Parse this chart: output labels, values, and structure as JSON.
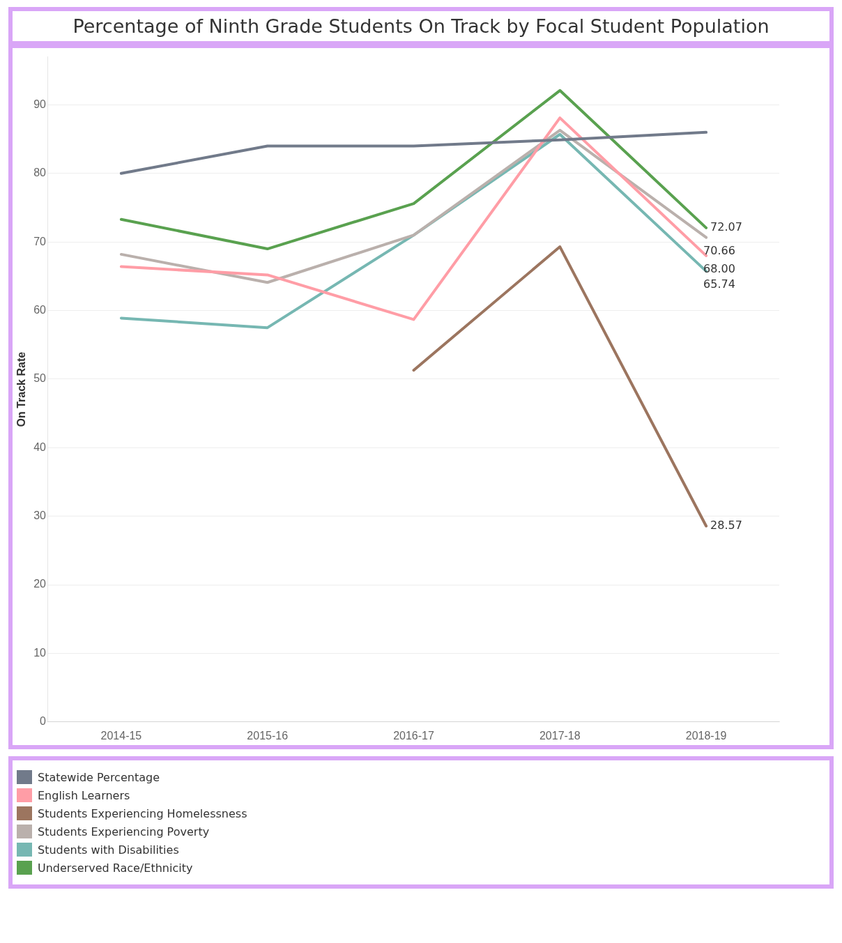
{
  "chart_data": {
    "type": "line",
    "title": "Percentage of Ninth Grade Students On Track by Focal Student Population",
    "ylabel": "On Track Rate",
    "categories": [
      "2014-15",
      "2015-16",
      "2016-17",
      "2017-18",
      "2018-19"
    ],
    "series": [
      {
        "name": "Statewide Percentage",
        "color": "#717a8a",
        "values": [
          80.0,
          84.0,
          84.0,
          84.9,
          86.0
        ]
      },
      {
        "name": "English Learners",
        "color": "#ff9da6",
        "values": [
          66.4,
          65.2,
          58.7,
          88.1,
          68.0
        ],
        "value_labels": [
          null,
          null,
          null,
          null,
          "68.00"
        ]
      },
      {
        "name": "Students Experiencing Homelessness",
        "color": "#9c755f",
        "values": [
          null,
          null,
          51.3,
          69.3,
          28.57
        ],
        "value_labels": [
          null,
          null,
          null,
          null,
          "28.57"
        ]
      },
      {
        "name": "Students Experiencing Poverty",
        "color": "#bab0ac",
        "values": [
          68.2,
          64.1,
          71.0,
          86.3,
          70.66
        ],
        "value_labels": [
          null,
          null,
          null,
          null,
          "70.66"
        ]
      },
      {
        "name": "Students with Disabilities",
        "color": "#76b7b2",
        "values": [
          58.9,
          57.5,
          71.0,
          85.7,
          65.74
        ],
        "value_labels": [
          null,
          null,
          null,
          null,
          "65.74"
        ]
      },
      {
        "name": "Underserved Race/Ethnicity",
        "color": "#59a14f",
        "values": [
          73.3,
          69.0,
          75.6,
          92.1,
          72.07
        ],
        "value_labels": [
          null,
          null,
          null,
          null,
          "72.07"
        ]
      }
    ],
    "ylim": [
      0,
      97
    ],
    "yticks": [
      0,
      10,
      20,
      30,
      40,
      50,
      60,
      70,
      80,
      90
    ],
    "grid": "y",
    "legend": "bottom",
    "marker": "none",
    "line_style": "solid"
  }
}
